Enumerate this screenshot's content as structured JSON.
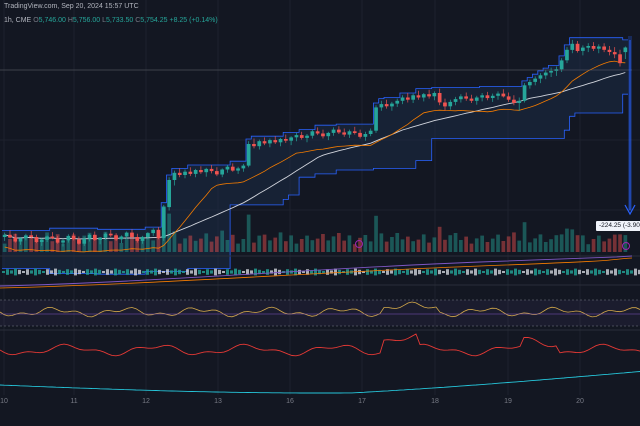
{
  "header": {
    "source": "TradingView.com, Sep 20, 2024 15:57 UTC",
    "timeframe": "1h, CME",
    "o_label": "O",
    "o_value": "5,746.00",
    "h_label": "H",
    "h_value": "5,756.00",
    "l_label": "L",
    "l_value": "5,733.50",
    "c_label": "C",
    "c_value": "5,754.25",
    "change": "+8.25 (+0.14%)"
  },
  "measure_badge": "-224.25 (-3.90",
  "colors": {
    "background": "#131722",
    "up": "#26a69a",
    "down": "#ef5350",
    "channel_line": "#2962ff",
    "channel_fill": "#1c2b45",
    "orange_line": "#f57c00",
    "white_line": "#d1d4dc",
    "rsi_line": "#d4a94a",
    "red_indicator": "#e53935",
    "teal_indicator": "#26c6da",
    "measure_arrow": "#2962ff"
  },
  "chart_data": {
    "type": "candlestick",
    "timeframe": "1h",
    "x_ticks": [
      "10",
      "11",
      "12",
      "13",
      "16",
      "17",
      "18",
      "19",
      "20"
    ],
    "price_approx": {
      "start_low": 5400,
      "end_high": 5760,
      "last_close": 5754.25
    },
    "candles": [
      [
        5412,
        5420,
        5405,
        5416
      ],
      [
        5416,
        5424,
        5410,
        5411
      ],
      [
        5411,
        5418,
        5402,
        5404
      ],
      [
        5404,
        5412,
        5398,
        5410
      ],
      [
        5410,
        5418,
        5406,
        5415
      ],
      [
        5415,
        5423,
        5409,
        5412
      ],
      [
        5412,
        5416,
        5401,
        5403
      ],
      [
        5403,
        5410,
        5396,
        5407
      ],
      [
        5407,
        5415,
        5403,
        5413
      ],
      [
        5413,
        5421,
        5408,
        5410
      ],
      [
        5410,
        5414,
        5400,
        5402
      ],
      [
        5402,
        5409,
        5395,
        5406
      ],
      [
        5406,
        5417,
        5402,
        5414
      ],
      [
        5414,
        5420,
        5406,
        5408
      ],
      [
        5408,
        5413,
        5398,
        5400
      ],
      [
        5400,
        5411,
        5396,
        5409
      ],
      [
        5409,
        5418,
        5404,
        5416
      ],
      [
        5416,
        5422,
        5405,
        5407
      ],
      [
        5407,
        5412,
        5399,
        5411
      ],
      [
        5411,
        5420,
        5407,
        5418
      ],
      [
        5418,
        5425,
        5412,
        5415
      ],
      [
        5415,
        5419,
        5405,
        5408
      ],
      [
        5408,
        5415,
        5401,
        5413
      ],
      [
        5413,
        5422,
        5409,
        5420
      ],
      [
        5420,
        5426,
        5410,
        5412
      ],
      [
        5412,
        5418,
        5402,
        5405
      ],
      [
        5405,
        5414,
        5400,
        5412
      ],
      [
        5412,
        5421,
        5408,
        5419
      ],
      [
        5419,
        5428,
        5414,
        5425
      ],
      [
        5425,
        5430,
        5408,
        5410
      ],
      [
        5410,
        5470,
        5405,
        5466
      ],
      [
        5466,
        5520,
        5460,
        5515
      ],
      [
        5515,
        5532,
        5505,
        5528
      ],
      [
        5528,
        5536,
        5520,
        5524
      ],
      [
        5524,
        5534,
        5518,
        5530
      ],
      [
        5530,
        5538,
        5522,
        5526
      ],
      [
        5526,
        5535,
        5520,
        5533
      ],
      [
        5533,
        5540,
        5526,
        5529
      ],
      [
        5529,
        5537,
        5521,
        5535
      ],
      [
        5535,
        5542,
        5527,
        5531
      ],
      [
        5531,
        5538,
        5522,
        5525
      ],
      [
        5525,
        5536,
        5520,
        5534
      ],
      [
        5534,
        5542,
        5528,
        5539
      ],
      [
        5539,
        5545,
        5530,
        5532
      ],
      [
        5532,
        5539,
        5526,
        5536
      ],
      [
        5536,
        5544,
        5530,
        5541
      ],
      [
        5541,
        5585,
        5538,
        5580
      ],
      [
        5580,
        5590,
        5572,
        5576
      ],
      [
        5576,
        5588,
        5570,
        5585
      ],
      [
        5585,
        5592,
        5578,
        5581
      ],
      [
        5581,
        5590,
        5574,
        5587
      ],
      [
        5587,
        5594,
        5580,
        5583
      ],
      [
        5583,
        5591,
        5576,
        5589
      ],
      [
        5589,
        5597,
        5582,
        5586
      ],
      [
        5586,
        5594,
        5578,
        5592
      ],
      [
        5592,
        5600,
        5585,
        5596
      ],
      [
        5596,
        5602,
        5588,
        5591
      ],
      [
        5591,
        5598,
        5583,
        5595
      ],
      [
        5595,
        5606,
        5590,
        5603
      ],
      [
        5603,
        5610,
        5596,
        5599
      ],
      [
        5599,
        5606,
        5590,
        5594
      ],
      [
        5594,
        5602,
        5587,
        5600
      ],
      [
        5600,
        5610,
        5595,
        5606
      ],
      [
        5606,
        5612,
        5598,
        5601
      ],
      [
        5601,
        5608,
        5593,
        5597
      ],
      [
        5597,
        5606,
        5591,
        5603
      ],
      [
        5603,
        5611,
        5597,
        5600
      ],
      [
        5600,
        5606,
        5590,
        5593
      ],
      [
        5593,
        5602,
        5586,
        5598
      ],
      [
        5598,
        5608,
        5594,
        5604
      ],
      [
        5604,
        5650,
        5600,
        5646
      ],
      [
        5646,
        5658,
        5640,
        5652
      ],
      [
        5652,
        5660,
        5644,
        5648
      ],
      [
        5648,
        5656,
        5640,
        5653
      ],
      [
        5653,
        5662,
        5647,
        5658
      ],
      [
        5658,
        5668,
        5652,
        5664
      ],
      [
        5664,
        5672,
        5655,
        5660
      ],
      [
        5660,
        5671,
        5654,
        5668
      ],
      [
        5668,
        5676,
        5660,
        5664
      ],
      [
        5664,
        5672,
        5657,
        5670
      ],
      [
        5670,
        5678,
        5662,
        5666
      ],
      [
        5666,
        5675,
        5659,
        5672
      ],
      [
        5672,
        5680,
        5650,
        5655
      ],
      [
        5655,
        5662,
        5640,
        5648
      ],
      [
        5648,
        5660,
        5642,
        5656
      ],
      [
        5656,
        5665,
        5650,
        5661
      ],
      [
        5661,
        5670,
        5655,
        5666
      ],
      [
        5666,
        5673,
        5658,
        5662
      ],
      [
        5662,
        5669,
        5654,
        5658
      ],
      [
        5658,
        5667,
        5651,
        5664
      ],
      [
        5664,
        5672,
        5657,
        5668
      ],
      [
        5668,
        5674,
        5659,
        5663
      ],
      [
        5663,
        5671,
        5656,
        5667
      ],
      [
        5667,
        5675,
        5660,
        5671
      ],
      [
        5671,
        5679,
        5664,
        5666
      ],
      [
        5666,
        5673,
        5656,
        5660
      ],
      [
        5660,
        5668,
        5650,
        5654
      ],
      [
        5654,
        5664,
        5640,
        5658
      ],
      [
        5658,
        5690,
        5655,
        5686
      ],
      [
        5686,
        5696,
        5680,
        5692
      ],
      [
        5692,
        5702,
        5686,
        5698
      ],
      [
        5698,
        5708,
        5690,
        5704
      ],
      [
        5704,
        5713,
        5697,
        5709
      ],
      [
        5709,
        5718,
        5701,
        5712
      ],
      [
        5712,
        5720,
        5703,
        5715
      ],
      [
        5715,
        5735,
        5710,
        5731
      ],
      [
        5731,
        5755,
        5726,
        5750
      ],
      [
        5750,
        5768,
        5744,
        5761
      ],
      [
        5761,
        5766,
        5745,
        5748
      ],
      [
        5748,
        5758,
        5740,
        5754
      ],
      [
        5754,
        5762,
        5746,
        5757
      ],
      [
        5757,
        5764,
        5748,
        5752
      ],
      [
        5752,
        5760,
        5744,
        5756
      ],
      [
        5756,
        5762,
        5746,
        5750
      ],
      [
        5750,
        5757,
        5740,
        5746
      ],
      [
        5746,
        5755,
        5735,
        5742
      ],
      [
        5742,
        5750,
        5720,
        5726
      ],
      [
        5746,
        5756,
        5733.5,
        5754.25
      ]
    ]
  }
}
